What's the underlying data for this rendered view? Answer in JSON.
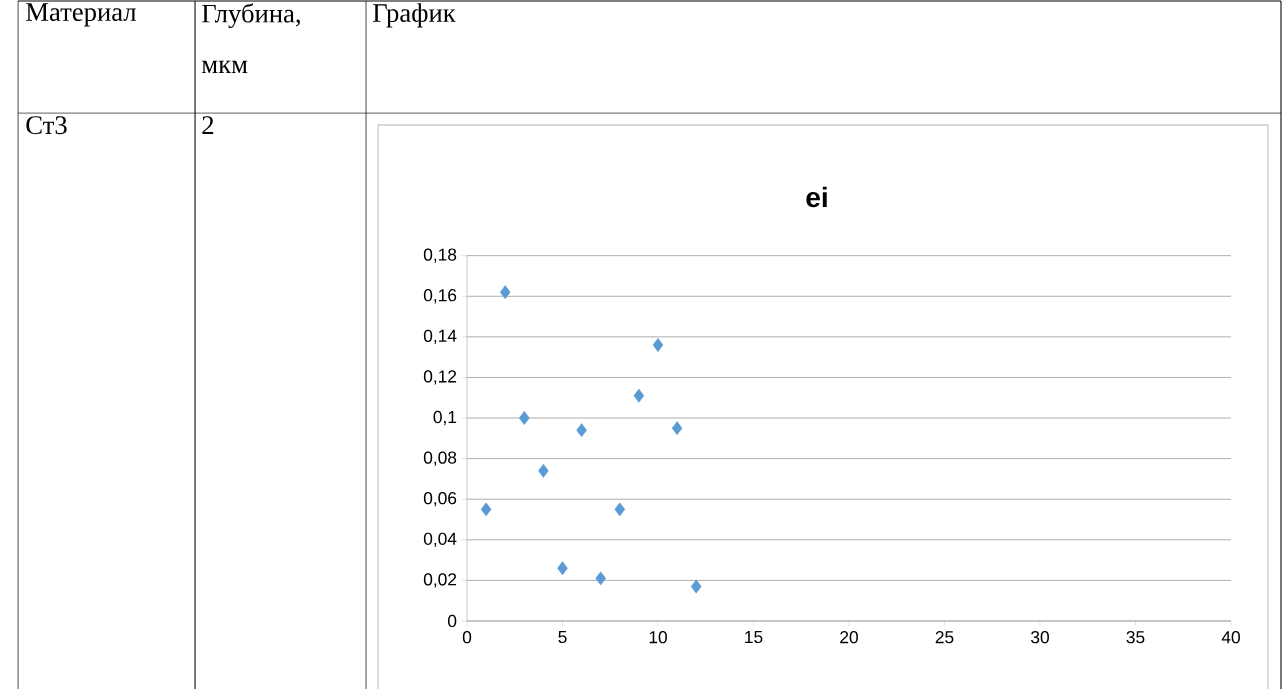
{
  "chart_data": {
    "type": "scatter",
    "title": "ei",
    "x": [
      1,
      2,
      3,
      4,
      5,
      6,
      7,
      8,
      9,
      10,
      11,
      12
    ],
    "values": [
      0.055,
      0.162,
      0.1,
      0.074,
      0.026,
      0.094,
      0.021,
      0.055,
      0.111,
      0.136,
      0.095,
      0.017
    ],
    "color": "#5b9bd5",
    "marker": "diamond",
    "grid": "y",
    "xlim": [
      0,
      40
    ],
    "xticks": [
      0,
      5,
      10,
      15,
      20,
      25,
      30,
      35,
      40
    ],
    "ylim": [
      0,
      0.18
    ],
    "yticks": [
      {
        "value": 0,
        "label": "0"
      },
      {
        "value": 0.02,
        "label": "0,02"
      },
      {
        "value": 0.04,
        "label": "0,04"
      },
      {
        "value": 0.06,
        "label": "0,06"
      },
      {
        "value": 0.08,
        "label": "0,08"
      },
      {
        "value": 0.1,
        "label": "0,1"
      },
      {
        "value": 0.12,
        "label": "0,12"
      },
      {
        "value": 0.14,
        "label": "0,14"
      },
      {
        "value": 0.16,
        "label": "0,16"
      },
      {
        "value": 0.18,
        "label": "0,18"
      }
    ],
    "annotations": [
      "Материал",
      "Глубина, мкм",
      "График",
      "Ст3",
      "2"
    ]
  }
}
